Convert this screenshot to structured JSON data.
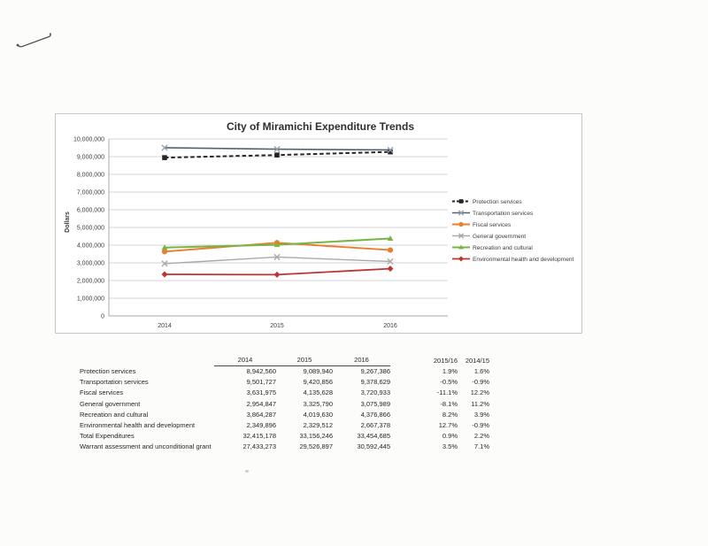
{
  "chart_data": {
    "type": "line",
    "title": "City of Miramichi Expenditure Trends",
    "xlabel": "",
    "ylabel": "Dollars",
    "categories": [
      "2014",
      "2015",
      "2016"
    ],
    "ylim": [
      0,
      10000000
    ],
    "ytick_step": 1000000,
    "yticks": [
      "0",
      "1,000,000",
      "2,000,000",
      "3,000,000",
      "4,000,000",
      "5,000,000",
      "6,000,000",
      "7,000,000",
      "8,000,000",
      "9,000,000",
      "10,000,000"
    ],
    "grid": true,
    "legend_position": "right",
    "series": [
      {
        "name": "Protection services",
        "values": [
          8942560,
          9089940,
          9267386
        ],
        "color": "#262626",
        "dash": "4.5 2.8",
        "line_width": 2,
        "marker": "square",
        "marker_color": "#262626"
      },
      {
        "name": "Transportation services",
        "values": [
          9501727,
          9420856,
          9378629
        ],
        "color": "#55626e",
        "dash": null,
        "line_width": 1.6,
        "marker": "x",
        "marker_color": "#8fa0b0"
      },
      {
        "name": "Fiscal services",
        "values": [
          3631975,
          4135628,
          3720933
        ],
        "color": "#e87e2e",
        "dash": null,
        "line_width": 1.9,
        "marker": "circle",
        "marker_color": "#e87e2e"
      },
      {
        "name": "General government",
        "values": [
          2954847,
          3325790,
          3075989
        ],
        "color": "#a9a9a9",
        "dash": null,
        "line_width": 1.4,
        "marker": "x",
        "marker_color": "#a9a9a9"
      },
      {
        "name": "Recreation and cultural",
        "values": [
          3864287,
          4019630,
          4376866
        ],
        "color": "#78b544",
        "dash": null,
        "line_width": 2,
        "marker": "triangle",
        "marker_color": "#78b544"
      },
      {
        "name": "Environmental health and development",
        "values": [
          2349896,
          2329512,
          2667378
        ],
        "color": "#c23230",
        "dash": null,
        "line_width": 1.8,
        "marker": "diamond",
        "marker_color": "#c23230"
      }
    ],
    "colors": {
      "gridline": "#d6d6d6",
      "axis_line": "#a8a8a8",
      "chart_border": "#c6c6c6",
      "text": "#3c3c3c"
    }
  },
  "table": {
    "col_headers": [
      "2014",
      "2015",
      "2016",
      "2015/16",
      "2014/15"
    ],
    "rows": [
      [
        "Protection services",
        "8,942,560",
        "9,089,940",
        "9,267,386",
        "1.9%",
        "1.6%"
      ],
      [
        "Transportation services",
        "9,501,727",
        "9,420,856",
        "9,378,629",
        "-0.5%",
        "-0.9%"
      ],
      [
        "Fiscal services",
        "3,631,975",
        "4,135,628",
        "3,720,933",
        "-11.1%",
        "12.2%"
      ],
      [
        "General government",
        "2,954,847",
        "3,325,790",
        "3,075,989",
        "-8.1%",
        "11.2%"
      ],
      [
        "Recreation and cultural",
        "3,864,287",
        "4,019,630",
        "4,376,866",
        "8.2%",
        "3.9%"
      ],
      [
        "Environmental health and development",
        "2,349,896",
        "2,329,512",
        "2,667,378",
        "12.7%",
        "-0.9%"
      ],
      [
        "Total Expenditures",
        "32,415,178",
        "33,156,246",
        "33,454,685",
        "0.9%",
        "2.2%"
      ],
      [
        "Warrant assessment and unconditional grant",
        "27,433,273",
        "29,526,897",
        "30,592,445",
        "3.5%",
        "7.1%"
      ]
    ]
  }
}
